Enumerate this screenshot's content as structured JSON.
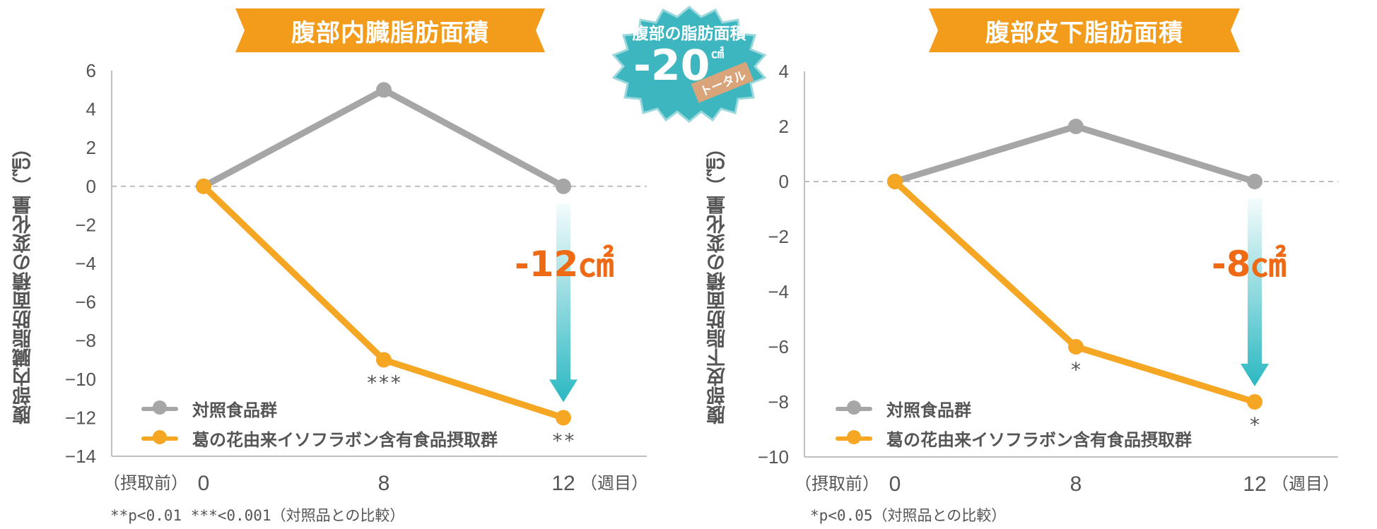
{
  "colors": {
    "banner": "#f39c1c",
    "control": "#a6a6a6",
    "treatment": "#f5a623",
    "arrow": "#2bb8c2",
    "delta_text": "#ee6a14",
    "badge": "#3db6c0"
  },
  "badge": {
    "line1": "腹部の脂肪面積",
    "value": "-20",
    "unit": "㎠",
    "tag": "トータル"
  },
  "legend": {
    "control": "対照食品群",
    "treatment": "葛の花由来イソフラボン含有食品摂取群"
  },
  "x_prefix": "（摂取前）",
  "x_suffix": "（週目）",
  "chart_data": [
    {
      "type": "line",
      "title": "腹部内臓脂肪面積",
      "ylabel": "腹部内臓脂肪面積の変化量（㎠）",
      "x": [
        0,
        8,
        12
      ],
      "xticks": [
        "0",
        "8",
        "12"
      ],
      "ylim": [
        -14,
        6
      ],
      "yticks": [
        "6",
        "4",
        "2",
        "0",
        "−2",
        "−4",
        "−6",
        "−8",
        "−10",
        "−12",
        "−14"
      ],
      "series": [
        {
          "name": "対照食品群",
          "values": [
            0,
            5,
            0
          ]
        },
        {
          "name": "葛の花由来イソフラボン含有食品摂取群",
          "values": [
            0,
            -9,
            -12
          ]
        }
      ],
      "significance": [
        "",
        "***",
        "**"
      ],
      "delta_label": "-12㎠",
      "footnote": "**p<0.01 ***<0.001（対照品との比較）"
    },
    {
      "type": "line",
      "title": "腹部皮下脂肪面積",
      "ylabel": "腹部皮下脂肪面積の変化量（㎠）",
      "x": [
        0,
        8,
        12
      ],
      "xticks": [
        "0",
        "8",
        "12"
      ],
      "ylim": [
        -10,
        4
      ],
      "yticks": [
        "4",
        "2",
        "0",
        "−2",
        "−4",
        "−6",
        "−8",
        "−10"
      ],
      "series": [
        {
          "name": "対照食品群",
          "values": [
            0,
            2,
            0
          ]
        },
        {
          "name": "葛の花由来イソフラボン含有食品摂取群",
          "values": [
            0,
            -6,
            -8
          ]
        }
      ],
      "significance": [
        "",
        "*",
        "*"
      ],
      "delta_label": "-8㎠",
      "footnote": "*p<0.05（対照品との比較）"
    }
  ]
}
